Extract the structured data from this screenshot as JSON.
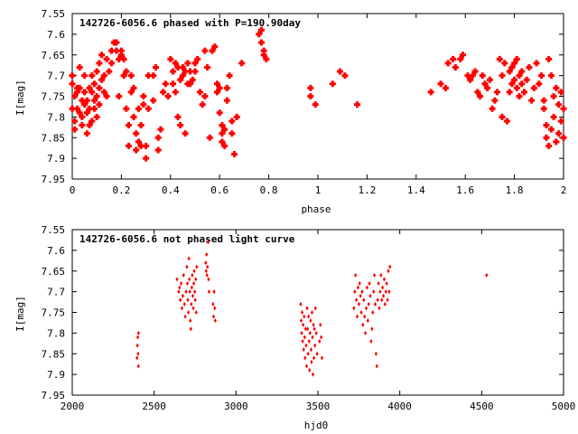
{
  "chart_data": [
    {
      "type": "scatter",
      "title": "142726-6056.6 phased with P=190.90day",
      "xlabel": "phase",
      "ylabel": "I[mag]",
      "xlim": [
        0,
        2
      ],
      "ylim": [
        7.95,
        7.55
      ],
      "y_inverted": true,
      "grid": false,
      "marker_color": "#ff0000",
      "marker": "plus-large",
      "x_ticks": [
        "0",
        "0.2",
        "0.4",
        "0.6",
        "0.8",
        "1",
        "1.2",
        "1.4",
        "1.6",
        "1.8",
        "2"
      ],
      "y_ticks": [
        "7.55",
        "7.6",
        "7.65",
        "7.7",
        "7.75",
        "7.8",
        "7.85",
        "7.9",
        "7.95"
      ],
      "points": [
        [
          0.0,
          7.78
        ],
        [
          0.0,
          7.72
        ],
        [
          0.0,
          7.7
        ],
        [
          0.01,
          7.75
        ],
        [
          0.01,
          7.81
        ],
        [
          0.01,
          7.83
        ],
        [
          0.02,
          7.73
        ],
        [
          0.02,
          7.78
        ],
        [
          0.02,
          7.74
        ],
        [
          0.03,
          7.79
        ],
        [
          0.03,
          7.73
        ],
        [
          0.03,
          7.68
        ],
        [
          0.04,
          7.76
        ],
        [
          0.04,
          7.8
        ],
        [
          0.04,
          7.82
        ],
        [
          0.05,
          7.74
        ],
        [
          0.05,
          7.77
        ],
        [
          0.05,
          7.7
        ],
        [
          0.06,
          7.79
        ],
        [
          0.06,
          7.84
        ],
        [
          0.06,
          7.76
        ],
        [
          0.07,
          7.82
        ],
        [
          0.07,
          7.78
        ],
        [
          0.07,
          7.73
        ],
        [
          0.08,
          7.81
        ],
        [
          0.08,
          7.74
        ],
        [
          0.08,
          7.7
        ],
        [
          0.09,
          7.78
        ],
        [
          0.09,
          7.76
        ],
        [
          0.09,
          7.72
        ],
        [
          0.1,
          7.75
        ],
        [
          0.1,
          7.69
        ],
        [
          0.1,
          7.8
        ],
        [
          0.11,
          7.73
        ],
        [
          0.11,
          7.67
        ],
        [
          0.11,
          7.77
        ],
        [
          0.12,
          7.71
        ],
        [
          0.12,
          7.65
        ],
        [
          0.13,
          7.74
        ],
        [
          0.13,
          7.7
        ],
        [
          0.14,
          7.66
        ],
        [
          0.14,
          7.75
        ],
        [
          0.15,
          7.69
        ],
        [
          0.16,
          7.64
        ],
        [
          0.16,
          7.67
        ],
        [
          0.17,
          7.62
        ],
        [
          0.18,
          7.64
        ],
        [
          0.18,
          7.62
        ],
        [
          0.19,
          7.75
        ],
        [
          0.19,
          7.66
        ],
        [
          0.2,
          7.65
        ],
        [
          0.2,
          7.64
        ],
        [
          0.21,
          7.66
        ],
        [
          0.21,
          7.7
        ],
        [
          0.22,
          7.69
        ],
        [
          0.22,
          7.78
        ],
        [
          0.23,
          7.82
        ],
        [
          0.23,
          7.87
        ],
        [
          0.24,
          7.7
        ],
        [
          0.24,
          7.74
        ],
        [
          0.25,
          7.73
        ],
        [
          0.25,
          7.8
        ],
        [
          0.26,
          7.84
        ],
        [
          0.26,
          7.88
        ],
        [
          0.27,
          7.78
        ],
        [
          0.27,
          7.86
        ],
        [
          0.28,
          7.87
        ],
        [
          0.28,
          7.82
        ],
        [
          0.29,
          7.77
        ],
        [
          0.29,
          7.75
        ],
        [
          0.3,
          7.87
        ],
        [
          0.3,
          7.9
        ],
        [
          0.31,
          7.78
        ],
        [
          0.31,
          7.7
        ],
        [
          0.33,
          7.76
        ],
        [
          0.33,
          7.7
        ],
        [
          0.34,
          7.68
        ],
        [
          0.35,
          7.88
        ],
        [
          0.35,
          7.85
        ],
        [
          0.36,
          7.83
        ],
        [
          0.37,
          7.74
        ],
        [
          0.38,
          7.72
        ],
        [
          0.39,
          7.75
        ],
        [
          0.4,
          7.66
        ],
        [
          0.41,
          7.69
        ],
        [
          0.41,
          7.72
        ],
        [
          0.42,
          7.74
        ],
        [
          0.42,
          7.67
        ],
        [
          0.43,
          7.8
        ],
        [
          0.43,
          7.68
        ],
        [
          0.44,
          7.71
        ],
        [
          0.44,
          7.82
        ],
        [
          0.45,
          7.7
        ],
        [
          0.45,
          7.68
        ],
        [
          0.46,
          7.69
        ],
        [
          0.46,
          7.84
        ],
        [
          0.47,
          7.72
        ],
        [
          0.47,
          7.67
        ],
        [
          0.48,
          7.69
        ],
        [
          0.48,
          7.72
        ],
        [
          0.49,
          7.71
        ],
        [
          0.5,
          7.69
        ],
        [
          0.5,
          7.67
        ],
        [
          0.51,
          7.66
        ],
        [
          0.52,
          7.74
        ],
        [
          0.53,
          7.77
        ],
        [
          0.54,
          7.75
        ],
        [
          0.54,
          7.64
        ],
        [
          0.55,
          7.68
        ],
        [
          0.56,
          7.85
        ],
        [
          0.57,
          7.64
        ],
        [
          0.58,
          7.63
        ],
        [
          0.59,
          7.72
        ],
        [
          0.59,
          7.74
        ],
        [
          0.6,
          7.73
        ],
        [
          0.6,
          7.79
        ],
        [
          0.61,
          7.82
        ],
        [
          0.61,
          7.84
        ],
        [
          0.61,
          7.86
        ],
        [
          0.62,
          7.87
        ],
        [
          0.62,
          7.83
        ],
        [
          0.63,
          7.73
        ],
        [
          0.63,
          7.76
        ],
        [
          0.64,
          7.7
        ],
        [
          0.65,
          7.81
        ],
        [
          0.65,
          7.84
        ],
        [
          0.66,
          7.89
        ],
        [
          0.67,
          7.8
        ],
        [
          0.69,
          7.67
        ],
        [
          0.76,
          7.6
        ],
        [
          0.77,
          7.59
        ],
        [
          0.77,
          7.62
        ],
        [
          0.78,
          7.65
        ],
        [
          0.78,
          7.64
        ],
        [
          0.79,
          7.66
        ],
        [
          0.97,
          7.73
        ],
        [
          0.97,
          7.75
        ],
        [
          0.99,
          7.77
        ],
        [
          1.06,
          7.72
        ],
        [
          1.09,
          7.69
        ],
        [
          1.11,
          7.7
        ],
        [
          1.16,
          7.77
        ],
        [
          1.46,
          7.74
        ],
        [
          1.5,
          7.72
        ],
        [
          1.52,
          7.73
        ],
        [
          1.53,
          7.67
        ],
        [
          1.55,
          7.66
        ],
        [
          1.56,
          7.68
        ],
        [
          1.58,
          7.66
        ],
        [
          1.59,
          7.65
        ],
        [
          1.61,
          7.7
        ],
        [
          1.62,
          7.71
        ],
        [
          1.63,
          7.7
        ],
        [
          1.64,
          7.69
        ],
        [
          1.65,
          7.74
        ],
        [
          1.66,
          7.75
        ],
        [
          1.67,
          7.7
        ],
        [
          1.68,
          7.72
        ],
        [
          1.69,
          7.73
        ],
        [
          1.7,
          7.71
        ],
        [
          1.71,
          7.78
        ],
        [
          1.72,
          7.76
        ],
        [
          1.73,
          7.74
        ],
        [
          1.74,
          7.66
        ],
        [
          1.75,
          7.8
        ],
        [
          1.75,
          7.7
        ],
        [
          1.76,
          7.67
        ],
        [
          1.77,
          7.81
        ],
        [
          1.78,
          7.74
        ],
        [
          1.78,
          7.69
        ],
        [
          1.79,
          7.72
        ],
        [
          1.79,
          7.68
        ],
        [
          1.8,
          7.71
        ],
        [
          1.8,
          7.67
        ],
        [
          1.81,
          7.66
        ],
        [
          1.81,
          7.73
        ],
        [
          1.82,
          7.7
        ],
        [
          1.82,
          7.75
        ],
        [
          1.83,
          7.69
        ],
        [
          1.83,
          7.72
        ],
        [
          1.84,
          7.74
        ],
        [
          1.85,
          7.71
        ],
        [
          1.86,
          7.68
        ],
        [
          1.87,
          7.76
        ],
        [
          1.88,
          7.73
        ],
        [
          1.89,
          7.67
        ],
        [
          1.9,
          7.72
        ],
        [
          1.91,
          7.7
        ],
        [
          1.92,
          7.76
        ],
        [
          1.92,
          7.78
        ],
        [
          1.93,
          7.82
        ],
        [
          1.93,
          7.85
        ],
        [
          1.94,
          7.87
        ],
        [
          1.94,
          7.66
        ],
        [
          1.95,
          7.7
        ],
        [
          1.95,
          7.83
        ],
        [
          1.96,
          7.75
        ],
        [
          1.96,
          7.8
        ],
        [
          1.97,
          7.86
        ],
        [
          1.97,
          7.73
        ],
        [
          1.98,
          7.77
        ],
        [
          1.98,
          7.84
        ],
        [
          1.99,
          7.81
        ],
        [
          1.99,
          7.74
        ],
        [
          2.0,
          7.78
        ],
        [
          2.0,
          7.85
        ]
      ]
    },
    {
      "type": "scatter",
      "title": "142726-6056.6 not phased light curve",
      "xlabel": "hjd0",
      "ylabel": "I[mag]",
      "xlim": [
        2000,
        5000
      ],
      "ylim": [
        7.95,
        7.55
      ],
      "y_inverted": true,
      "grid": false,
      "marker_color": "#ff0000",
      "marker": "diamond-small",
      "x_ticks": [
        "2000",
        "2500",
        "3000",
        "3500",
        "4000",
        "4500",
        "5000"
      ],
      "y_ticks": [
        "7.55",
        "7.6",
        "7.65",
        "7.7",
        "7.75",
        "7.8",
        "7.85",
        "7.9",
        "7.95"
      ],
      "points": [
        [
          2395,
          7.86
        ],
        [
          2398,
          7.83
        ],
        [
          2400,
          7.81
        ],
        [
          2402,
          7.85
        ],
        [
          2404,
          7.88
        ],
        [
          2405,
          7.8
        ],
        [
          2640,
          7.67
        ],
        [
          2650,
          7.7
        ],
        [
          2655,
          7.69
        ],
        [
          2660,
          7.72
        ],
        [
          2665,
          7.68
        ],
        [
          2670,
          7.74
        ],
        [
          2675,
          7.71
        ],
        [
          2680,
          7.66
        ],
        [
          2685,
          7.73
        ],
        [
          2690,
          7.76
        ],
        [
          2695,
          7.7
        ],
        [
          2700,
          7.64
        ],
        [
          2703,
          7.68
        ],
        [
          2706,
          7.72
        ],
        [
          2709,
          7.75
        ],
        [
          2712,
          7.62
        ],
        [
          2715,
          7.67
        ],
        [
          2718,
          7.7
        ],
        [
          2721,
          7.77
        ],
        [
          2724,
          7.79
        ],
        [
          2727,
          7.73
        ],
        [
          2730,
          7.69
        ],
        [
          2733,
          7.66
        ],
        [
          2736,
          7.71
        ],
        [
          2739,
          7.74
        ],
        [
          2742,
          7.68
        ],
        [
          2745,
          7.65
        ],
        [
          2748,
          7.7
        ],
        [
          2751,
          7.72
        ],
        [
          2754,
          7.67
        ],
        [
          2757,
          7.75
        ],
        [
          2760,
          7.64
        ],
        [
          2815,
          7.63
        ],
        [
          2818,
          7.65
        ],
        [
          2820,
          7.61
        ],
        [
          2823,
          7.66
        ],
        [
          2826,
          7.64
        ],
        [
          2829,
          7.58
        ],
        [
          2832,
          7.67
        ],
        [
          2835,
          7.7
        ],
        [
          2860,
          7.73
        ],
        [
          2863,
          7.76
        ],
        [
          2866,
          7.7
        ],
        [
          2870,
          7.74
        ],
        [
          2873,
          7.77
        ],
        [
          3395,
          7.73
        ],
        [
          3398,
          7.77
        ],
        [
          3401,
          7.8
        ],
        [
          3404,
          7.75
        ],
        [
          3407,
          7.82
        ],
        [
          3410,
          7.78
        ],
        [
          3413,
          7.84
        ],
        [
          3416,
          7.76
        ],
        [
          3419,
          7.81
        ],
        [
          3422,
          7.86
        ],
        [
          3425,
          7.79
        ],
        [
          3428,
          7.83
        ],
        [
          3431,
          7.88
        ],
        [
          3434,
          7.74
        ],
        [
          3437,
          7.79
        ],
        [
          3440,
          7.85
        ],
        [
          3443,
          7.76
        ],
        [
          3446,
          7.82
        ],
        [
          3449,
          7.89
        ],
        [
          3452,
          7.8
        ],
        [
          3455,
          7.77
        ],
        [
          3458,
          7.84
        ],
        [
          3461,
          7.87
        ],
        [
          3464,
          7.75
        ],
        [
          3467,
          7.81
        ],
        [
          3470,
          7.9
        ],
        [
          3473,
          7.78
        ],
        [
          3476,
          7.86
        ],
        [
          3479,
          7.79
        ],
        [
          3482,
          7.83
        ],
        [
          3485,
          7.74
        ],
        [
          3490,
          7.8
        ],
        [
          3495,
          7.85
        ],
        [
          3510,
          7.82
        ],
        [
          3515,
          7.78
        ],
        [
          3520,
          7.81
        ],
        [
          3525,
          7.86
        ],
        [
          3720,
          7.74
        ],
        [
          3725,
          7.7
        ],
        [
          3730,
          7.66
        ],
        [
          3735,
          7.72
        ],
        [
          3740,
          7.76
        ],
        [
          3745,
          7.69
        ],
        [
          3750,
          7.73
        ],
        [
          3755,
          7.68
        ],
        [
          3760,
          7.71
        ],
        [
          3765,
          7.75
        ],
        [
          3770,
          7.7
        ],
        [
          3775,
          7.78
        ],
        [
          3780,
          7.72
        ],
        [
          3785,
          7.76
        ],
        [
          3790,
          7.8
        ],
        [
          3795,
          7.74
        ],
        [
          3800,
          7.69
        ],
        [
          3805,
          7.77
        ],
        [
          3810,
          7.73
        ],
        [
          3815,
          7.68
        ],
        [
          3820,
          7.71
        ],
        [
          3825,
          7.82
        ],
        [
          3830,
          7.79
        ],
        [
          3835,
          7.75
        ],
        [
          3840,
          7.7
        ],
        [
          3845,
          7.66
        ],
        [
          3850,
          7.73
        ],
        [
          3855,
          7.85
        ],
        [
          3860,
          7.88
        ],
        [
          3865,
          7.72
        ],
        [
          3870,
          7.68
        ],
        [
          3875,
          7.74
        ],
        [
          3880,
          7.7
        ],
        [
          3885,
          7.66
        ],
        [
          3890,
          7.72
        ],
        [
          3895,
          7.69
        ],
        [
          3900,
          7.71
        ],
        [
          3905,
          7.67
        ],
        [
          3910,
          7.73
        ],
        [
          3915,
          7.7
        ],
        [
          3920,
          7.68
        ],
        [
          3925,
          7.72
        ],
        [
          3930,
          7.65
        ],
        [
          3935,
          7.7
        ],
        [
          3940,
          7.64
        ],
        [
          4530,
          7.66
        ]
      ]
    }
  ]
}
